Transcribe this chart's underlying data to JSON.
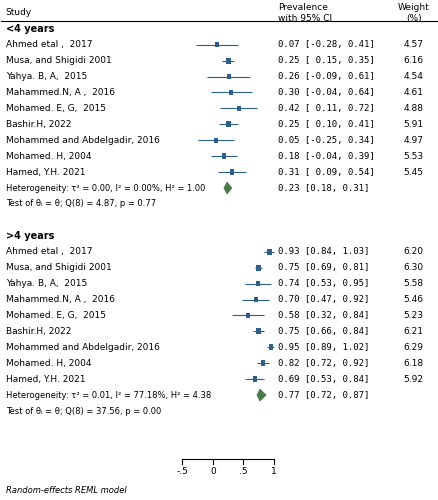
{
  "col_header_ci": "Prevalence\nwith 95% CI",
  "col_header_w": "Weight\n(%)",
  "group1_label": "<4 years",
  "group2_label": ">4 years",
  "group1_studies": [
    {
      "study": "Ahmed etal ,  2017",
      "est": 0.07,
      "lo": -0.28,
      "hi": 0.41,
      "weight": "4.57"
    },
    {
      "study": "Musa, and Shigidi 2001",
      "est": 0.25,
      "lo": 0.15,
      "hi": 0.35,
      "weight": "6.16"
    },
    {
      "study": "Yahya. B, A,  2015",
      "est": 0.26,
      "lo": -0.09,
      "hi": 0.61,
      "weight": "4.54"
    },
    {
      "study": "Mahammed.N, A ,  2016",
      "est": 0.3,
      "lo": -0.04,
      "hi": 0.64,
      "weight": "4.61"
    },
    {
      "study": "Mohamed. E, G,  2015",
      "est": 0.42,
      "lo": 0.11,
      "hi": 0.72,
      "weight": "4.88"
    },
    {
      "study": "Bashir.H, 2022",
      "est": 0.25,
      "lo": 0.1,
      "hi": 0.41,
      "weight": "5.91"
    },
    {
      "study": "Mohammed and Abdelgadir, 2016",
      "est": 0.05,
      "lo": -0.25,
      "hi": 0.34,
      "weight": "4.97"
    },
    {
      "study": "Mohamed. H, 2004",
      "est": 0.18,
      "lo": -0.04,
      "hi": 0.39,
      "weight": "5.53"
    },
    {
      "study": "Hamed, Y.H. 2021",
      "est": 0.31,
      "lo": 0.09,
      "hi": 0.54,
      "weight": "5.45"
    }
  ],
  "group1_pooled": {
    "est": 0.23,
    "lo": 0.18,
    "hi": 0.31,
    "heterogeneity": "Heterogeneity: τ² = 0.00, I² = 0.00%, H² = 1.00",
    "test": "Test of θᵢ = θ; Q(8) = 4.87, p = 0.77"
  },
  "group2_studies": [
    {
      "study": "Ahmed etal ,  2017",
      "est": 0.93,
      "lo": 0.84,
      "hi": 1.03,
      "weight": "6.20"
    },
    {
      "study": "Musa, and Shigidi 2001",
      "est": 0.75,
      "lo": 0.69,
      "hi": 0.81,
      "weight": "6.30"
    },
    {
      "study": "Yahya. B, A,  2015",
      "est": 0.74,
      "lo": 0.53,
      "hi": 0.95,
      "weight": "5.58"
    },
    {
      "study": "Mahammed.N, A ,  2016",
      "est": 0.7,
      "lo": 0.47,
      "hi": 0.92,
      "weight": "5.46"
    },
    {
      "study": "Mohamed. E, G,  2015",
      "est": 0.58,
      "lo": 0.32,
      "hi": 0.84,
      "weight": "5.23"
    },
    {
      "study": "Bashir.H, 2022",
      "est": 0.75,
      "lo": 0.66,
      "hi": 0.84,
      "weight": "6.21"
    },
    {
      "study": "Mohammed and Abdelgadir, 2016",
      "est": 0.95,
      "lo": 0.89,
      "hi": 1.02,
      "weight": "6.29"
    },
    {
      "study": "Mohamed. H, 2004",
      "est": 0.82,
      "lo": 0.72,
      "hi": 0.92,
      "weight": "6.18"
    },
    {
      "study": "Hamed, Y.H. 2021",
      "est": 0.69,
      "lo": 0.53,
      "hi": 0.84,
      "weight": "5.92"
    }
  ],
  "group2_pooled": {
    "est": 0.77,
    "lo": 0.72,
    "hi": 0.87,
    "heterogeneity": "Heterogeneity: τ² = 0.01, I² = 77.18%, H² = 4.38",
    "test": "Test of θᵢ = θ; Q(8) = 37.56, p = 0.00"
  },
  "footer": "Random-effects REML model",
  "xlim": [
    -0.5,
    1.0
  ],
  "xticks": [
    -0.5,
    0.0,
    0.5,
    1.0
  ],
  "xticklabels": [
    "-.5",
    "0",
    ".5",
    "1"
  ],
  "square_color": "#2d5f8a",
  "diamond_color": "#4a7a4a",
  "line_color": "#2d5f8a",
  "text_color": "#000000",
  "bg_color": "#ffffff"
}
